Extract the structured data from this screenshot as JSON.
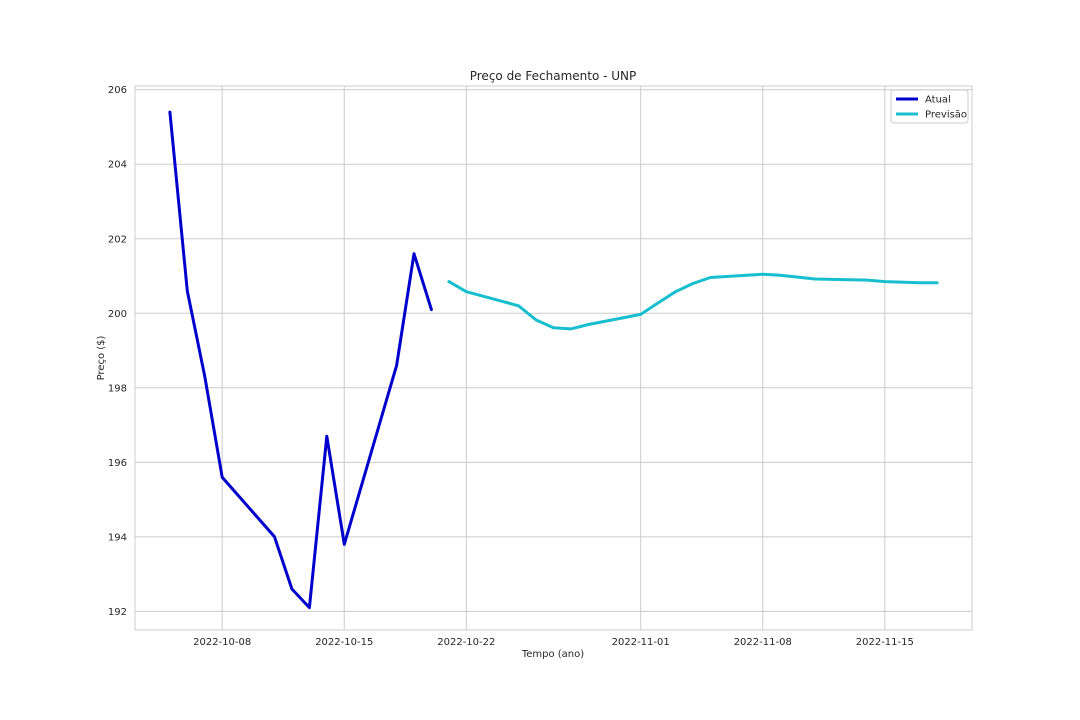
{
  "chart_data": {
    "type": "line",
    "title": "Preço de Fechamento - UNP",
    "xlabel": "Tempo (ano)",
    "ylabel": "Preço ($)",
    "ylim": [
      191.5,
      206.1
    ],
    "xlim": [
      "2022-10-03",
      "2022-11-20"
    ],
    "yticks": [
      192,
      194,
      196,
      198,
      200,
      202,
      204,
      206
    ],
    "xticks": [
      "2022-10-08",
      "2022-10-15",
      "2022-10-22",
      "2022-11-01",
      "2022-11-08",
      "2022-11-15"
    ],
    "grid": true,
    "legend_position": "top-right",
    "series": [
      {
        "name": "Atual",
        "color": "#0000cc",
        "points": [
          [
            "2022-10-05",
            205.4
          ],
          [
            "2022-10-06",
            200.6
          ],
          [
            "2022-10-07",
            198.3
          ],
          [
            "2022-10-08",
            195.6
          ],
          [
            "2022-10-11",
            194.0
          ],
          [
            "2022-10-12",
            192.6
          ],
          [
            "2022-10-13",
            192.1
          ],
          [
            "2022-10-14",
            196.7
          ],
          [
            "2022-10-15",
            193.8
          ],
          [
            "2022-10-18",
            198.6
          ],
          [
            "2022-10-19",
            201.6
          ],
          [
            "2022-10-20",
            200.1
          ]
        ]
      },
      {
        "name": "Previsão",
        "color": "#17becf",
        "points": [
          [
            "2022-10-21",
            200.85
          ],
          [
            "2022-10-22",
            200.58
          ],
          [
            "2022-10-25",
            200.2
          ],
          [
            "2022-10-26",
            199.82
          ],
          [
            "2022-10-27",
            199.61
          ],
          [
            "2022-10-28",
            199.58
          ],
          [
            "2022-10-29",
            199.7
          ],
          [
            "2022-11-01",
            199.97
          ],
          [
            "2022-11-02",
            200.28
          ],
          [
            "2022-11-03",
            200.58
          ],
          [
            "2022-11-04",
            200.8
          ],
          [
            "2022-11-05",
            200.96
          ],
          [
            "2022-11-08",
            201.05
          ],
          [
            "2022-11-09",
            201.02
          ],
          [
            "2022-11-11",
            200.92
          ],
          [
            "2022-11-14",
            200.89
          ],
          [
            "2022-11-15",
            200.85
          ],
          [
            "2022-11-17",
            200.82
          ],
          [
            "2022-11-18",
            200.82
          ]
        ]
      }
    ]
  }
}
